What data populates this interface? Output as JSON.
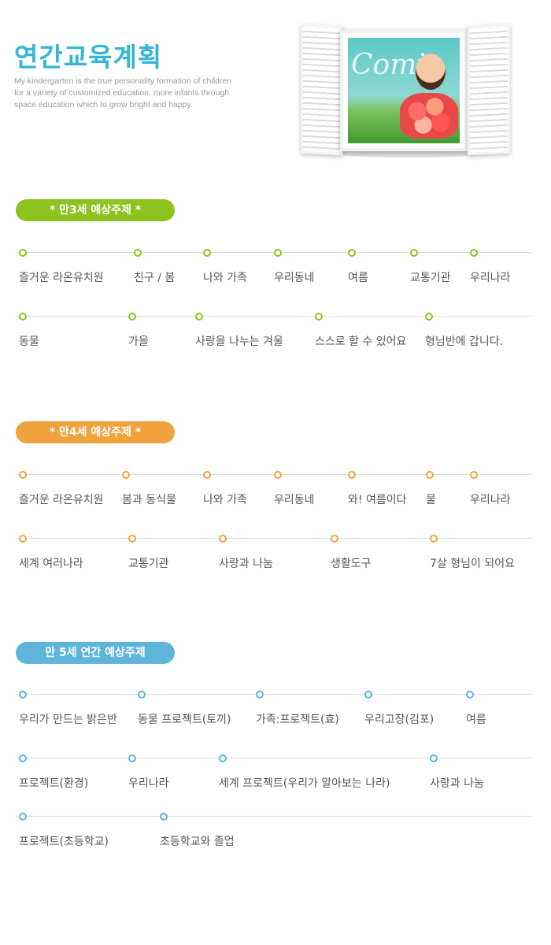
{
  "header": {
    "title": "연간교육계획",
    "intro_lines": [
      "My kindergarten is the true personality formation of children",
      "for a variety of customized education, more infants through",
      "space education which to grow bright and happy."
    ],
    "photo_word": "Comi"
  },
  "colors": {
    "green": "#8dc21f",
    "orange": "#f0a23c",
    "blue": "#5fb4d9",
    "title": "#35b6d6"
  },
  "sections": [
    {
      "heading": "* 만3세 예상주제 *",
      "color": "green",
      "rows": [
        [
          "즐거운 라온유치원",
          "친구 / 봄",
          "나와 가족",
          "우리동네",
          "여름",
          "교통기관",
          "우리나라"
        ],
        [
          "동물",
          "가을",
          "사랑을 나누는 겨울",
          "스스로 할 수 있어요",
          "형님반에 갑니다."
        ]
      ]
    },
    {
      "heading": "* 만4세 예상주제 *",
      "color": "orange",
      "rows": [
        [
          "즐거운 라온유치원",
          "봄과 동식물",
          "나와 가족",
          "우리동네",
          "와! 여름이다",
          "물",
          "우리나라"
        ],
        [
          "세계 여러나라",
          "교통기관",
          "사랑과 나눔",
          "생활도구",
          "7살 형님이 되어요"
        ]
      ]
    },
    {
      "heading": "만 5세 연간 예상주제",
      "color": "blue",
      "rows": [
        [
          "우리가 만드는 밝은반",
          "동물 프로젝트(토끼)",
          "가족:프로젝트(효)",
          "우리고장(김포)",
          "여름"
        ],
        [
          "프로젝트(환경)",
          "우리나라",
          "세계 프로젝트(우리가 알아보는 나라)",
          "사랑과 나눔"
        ],
        [
          "프로젝트(초등학교)",
          "초등학교와 졸업"
        ]
      ]
    }
  ]
}
